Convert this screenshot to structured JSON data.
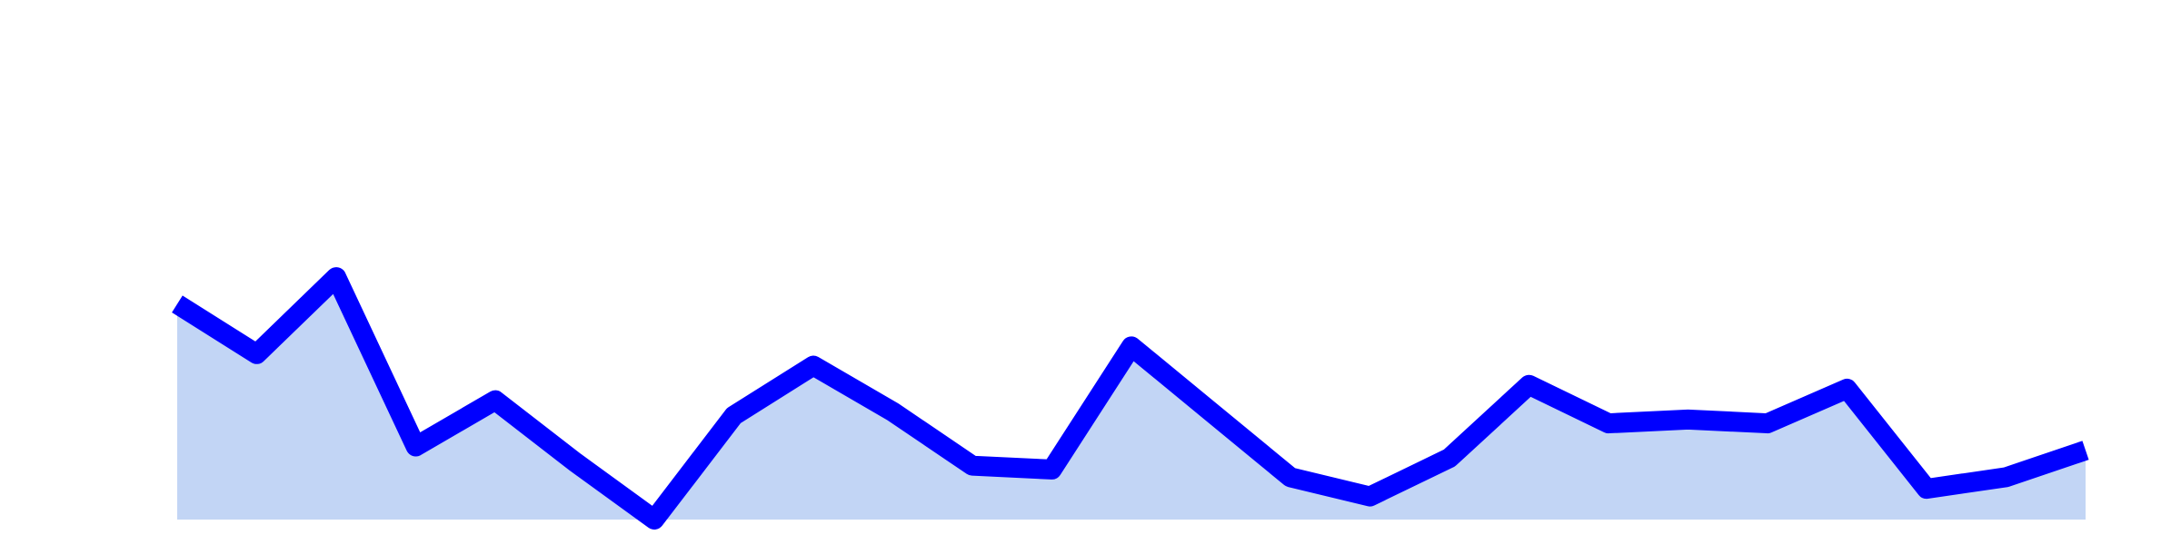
{
  "chart_data": {
    "type": "area",
    "x": [
      0,
      1,
      2,
      3,
      4,
      5,
      6,
      7,
      8,
      9,
      10,
      11,
      12,
      13,
      14,
      15,
      16,
      17,
      18,
      19,
      20,
      21,
      22,
      23,
      24
    ],
    "series": [
      {
        "values": [
          0.56,
          0.43,
          0.63,
          0.19,
          0.31,
          0.15,
          0.0,
          0.27,
          0.4,
          0.28,
          0.14,
          0.13,
          0.45,
          0.28,
          0.11,
          0.06,
          0.16,
          0.35,
          0.25,
          0.26,
          0.25,
          0.34,
          0.08,
          0.11,
          0.18
        ]
      }
    ],
    "ylim": [
      0,
      1.35
    ],
    "grid": false,
    "legend": "none",
    "colors": {
      "line": "#0000ff",
      "fill": "#c2d5f5",
      "background": "#ffffff"
    }
  }
}
